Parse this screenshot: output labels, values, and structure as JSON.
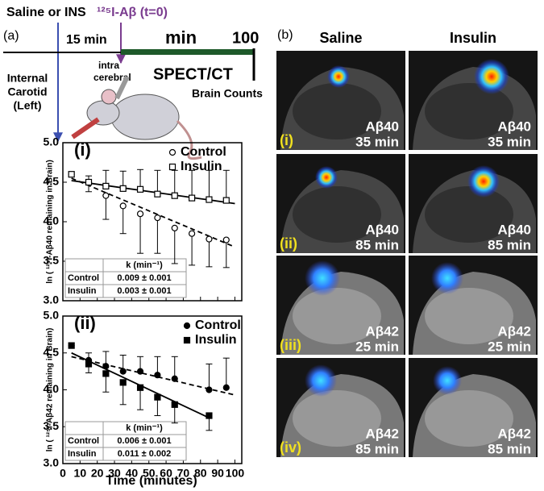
{
  "schematic": {
    "panel": "(a)",
    "injection": "Saline or INS",
    "tracer": "¹²⁵I-Aβ (t=0)",
    "pre_time": "15 min",
    "unit": "min",
    "end": "100",
    "route_ic": [
      "intra",
      "cerebral"
    ],
    "imaging": "SPECT/CT",
    "counts": "Brain Counts",
    "route_carotid": [
      "Internal",
      "Carotid",
      "(Left)"
    ]
  },
  "images": {
    "panel": "(b)",
    "columns": [
      "Saline",
      "Insulin"
    ],
    "rows": [
      {
        "label": "(i)",
        "peptide": "Aβ40",
        "time": "35 min"
      },
      {
        "label": "(ii)",
        "peptide": "Aβ40",
        "time": "85 min"
      },
      {
        "label": "(iii)",
        "peptide": "Aβ42",
        "time": "25 min"
      },
      {
        "label": "(iv)",
        "peptide": "Aβ42",
        "time": "85 min"
      }
    ]
  },
  "x_label": "Time (minutes)",
  "chart_data": [
    {
      "type": "scatter",
      "panel": "(i)",
      "y_label": "ln ( ¹²⁵I-Aβ40 remaining in Brain)",
      "xlim": [
        0,
        104
      ],
      "xticks": [
        0,
        10,
        20,
        30,
        40,
        50,
        60,
        70,
        80,
        90,
        100
      ],
      "ylim": [
        3,
        5
      ],
      "yticks": [
        {
          "value": 3,
          "label": "3.0"
        },
        3.5,
        {
          "value": 4,
          "label": "4.0"
        },
        4.5,
        {
          "value": 5,
          "label": "5.0"
        }
      ],
      "series": [
        {
          "name": "Control",
          "marker": "circle-open",
          "error_direction": "down",
          "line_style": "dashed",
          "x": [
            15,
            25,
            35,
            45,
            55,
            65,
            75,
            85,
            95
          ],
          "values": [
            4.5,
            4.33,
            4.2,
            4.1,
            4.05,
            3.92,
            3.85,
            3.78,
            3.77
          ],
          "errors": [
            0.12,
            0.3,
            0.35,
            0.5,
            0.45,
            0.45,
            0.4,
            0.35,
            0.35
          ],
          "fit": {
            "x": [
              5,
              100
            ],
            "values": [
              4.55,
              3.68
            ]
          }
        },
        {
          "name": "Insulin",
          "marker": "square-open",
          "error_direction": "up",
          "line_style": "solid",
          "x": [
            5,
            15,
            25,
            35,
            45,
            55,
            65,
            75,
            85,
            95
          ],
          "values": [
            4.6,
            4.5,
            4.45,
            4.42,
            4.41,
            4.35,
            4.33,
            4.3,
            4.28,
            4.27
          ],
          "errors": [
            0,
            0.08,
            0.2,
            0.22,
            0.25,
            0.3,
            0.32,
            0.35,
            0.37,
            0.38
          ],
          "fit": {
            "x": [
              5,
              100
            ],
            "values": [
              4.52,
              4.23
            ]
          }
        }
      ],
      "table": {
        "header": "k (min⁻¹)",
        "rows": [
          [
            "Control",
            "0.009 ± 0.001"
          ],
          [
            "Insulin",
            "0.003 ± 0.001"
          ]
        ]
      }
    },
    {
      "type": "scatter",
      "panel": "(ii)",
      "y_label": "ln ( ¹²⁵I-Aβ42 remaining in Brain)",
      "xlim": [
        0,
        104
      ],
      "xticks": [
        0,
        10,
        20,
        30,
        40,
        50,
        60,
        70,
        80,
        90,
        100
      ],
      "ylim": [
        3,
        5
      ],
      "yticks": [
        {
          "value": 3,
          "label": "3.0"
        },
        3.5,
        {
          "value": 4,
          "label": "4.0"
        },
        4.5,
        {
          "value": 5,
          "label": "5.0"
        }
      ],
      "series": [
        {
          "name": "Control",
          "marker": "circle",
          "error_direction": "up",
          "line_style": "dashed",
          "x": [
            15,
            25,
            35,
            45,
            55,
            65,
            85,
            95
          ],
          "values": [
            4.4,
            4.32,
            4.25,
            4.25,
            4.2,
            4.15,
            4.0,
            4.03
          ],
          "errors": [
            0.1,
            0.2,
            0.22,
            0.2,
            0.25,
            0.3,
            0.35,
            0.4
          ],
          "fit": {
            "x": [
              5,
              100
            ],
            "values": [
              4.45,
              3.93
            ]
          }
        },
        {
          "name": "Insulin",
          "marker": "square",
          "error_direction": "down",
          "line_style": "solid",
          "x": [
            5,
            15,
            25,
            35,
            45,
            55,
            65,
            85
          ],
          "values": [
            4.6,
            4.35,
            4.22,
            4.1,
            4.03,
            3.9,
            3.8,
            3.65
          ],
          "errors": [
            0,
            0.12,
            0.25,
            0.3,
            0.3,
            0.25,
            0.25,
            0.2
          ],
          "fit": {
            "x": [
              5,
              85
            ],
            "values": [
              4.5,
              3.62
            ]
          }
        }
      ],
      "table": {
        "header": "k (min⁻¹)",
        "rows": [
          [
            "Control",
            "0.006 ± 0.001"
          ],
          [
            "Insulin",
            "0.011 ± 0.002"
          ]
        ]
      }
    }
  ]
}
